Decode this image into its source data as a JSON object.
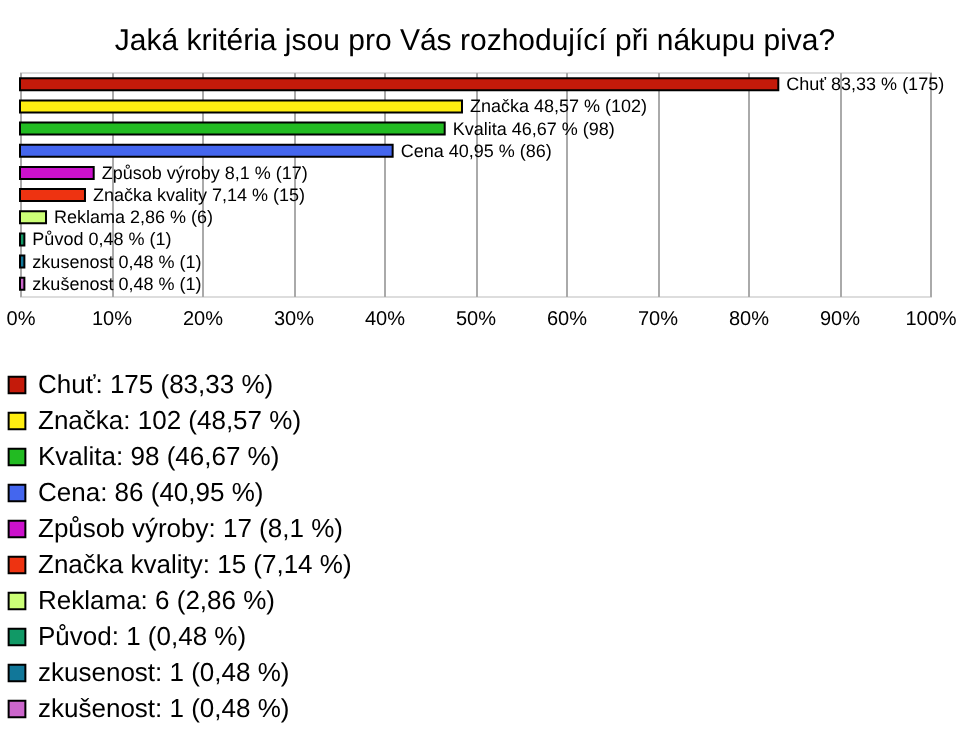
{
  "chart_data": {
    "type": "bar",
    "orientation": "horizontal",
    "title": "Jaká kritéria jsou pro Vás rozhodující při nákupu piva?",
    "categories": [
      null,
      null,
      null,
      null,
      null,
      null,
      null,
      null,
      null,
      null
    ],
    "series": [
      {
        "name": "Chuť: 175 (83,33 %)",
        "color": "#c41a0a",
        "values": [
          83.33,
          null,
          null,
          null,
          null,
          null,
          null,
          null,
          null,
          null
        ],
        "value_labels": [
          "Chuť 83,33 % (175)",
          null,
          null,
          null,
          null,
          null,
          null,
          null,
          null,
          null
        ]
      },
      {
        "name": "Značka: 102 (48,57 %)",
        "color": "#ffee11",
        "values": [
          null,
          48.57,
          null,
          null,
          null,
          null,
          null,
          null,
          null,
          null
        ],
        "value_labels": [
          null,
          "Značka 48,57 % (102)",
          null,
          null,
          null,
          null,
          null,
          null,
          null,
          null
        ]
      },
      {
        "name": "Kvalita: 98 (46,67 %)",
        "color": "#22bb22",
        "values": [
          null,
          null,
          46.67,
          null,
          null,
          null,
          null,
          null,
          null,
          null
        ],
        "value_labels": [
          null,
          null,
          "Kvalita 46,67 % (98)",
          null,
          null,
          null,
          null,
          null,
          null,
          null
        ]
      },
      {
        "name": "Cena: 86 (40,95 %)",
        "color": "#4466ee",
        "values": [
          null,
          null,
          null,
          40.95,
          null,
          null,
          null,
          null,
          null,
          null
        ],
        "value_labels": [
          null,
          null,
          null,
          "Cena 40,95 % (86)",
          null,
          null,
          null,
          null,
          null,
          null
        ]
      },
      {
        "name": "Způsob výroby: 17 (8,1 %)",
        "color": "#cc11cc",
        "values": [
          null,
          null,
          null,
          null,
          8.1,
          null,
          null,
          null,
          null,
          null
        ],
        "value_labels": [
          null,
          null,
          null,
          null,
          "Způsob výroby 8,1 % (17)",
          null,
          null,
          null,
          null,
          null
        ]
      },
      {
        "name": "Značka kvality: 15 (7,14 %)",
        "color": "#ee3311",
        "values": [
          null,
          null,
          null,
          null,
          null,
          7.14,
          null,
          null,
          null,
          null
        ],
        "value_labels": [
          null,
          null,
          null,
          null,
          null,
          "Značka kvality 7,14 % (15)",
          null,
          null,
          null,
          null
        ]
      },
      {
        "name": "Reklama: 6 (2,86 %)",
        "color": "#ccff77",
        "values": [
          null,
          null,
          null,
          null,
          null,
          null,
          2.86,
          null,
          null,
          null
        ],
        "value_labels": [
          null,
          null,
          null,
          null,
          null,
          null,
          "Reklama 2,86 % (6)",
          null,
          null,
          null
        ]
      },
      {
        "name": "Původ: 1 (0,48 %)",
        "color": "#119966",
        "values": [
          null,
          null,
          null,
          null,
          null,
          null,
          null,
          0.48,
          null,
          null
        ],
        "value_labels": [
          null,
          null,
          null,
          null,
          null,
          null,
          null,
          "Původ 0,48 % (1)",
          null,
          null
        ]
      },
      {
        "name": "zkusenost: 1 (0,48 %)",
        "color": "#117799",
        "values": [
          null,
          null,
          null,
          null,
          null,
          null,
          null,
          null,
          0.48,
          null
        ],
        "value_labels": [
          null,
          null,
          null,
          null,
          null,
          null,
          null,
          null,
          "zkusenost 0,48 % (1)",
          null
        ]
      },
      {
        "name": "zkušenost: 1 (0,48 %)",
        "color": "#cc66cc",
        "values": [
          null,
          null,
          null,
          null,
          null,
          null,
          null,
          null,
          null,
          0.48
        ],
        "value_labels": [
          null,
          null,
          null,
          null,
          null,
          null,
          null,
          null,
          null,
          "zkušenost 0,48 % (1)"
        ]
      }
    ],
    "xlim": [
      0,
      100
    ],
    "xticks": [
      {
        "value": 0,
        "label": "0%"
      },
      {
        "value": 10,
        "label": "10%"
      },
      {
        "value": 20,
        "label": "20%"
      },
      {
        "value": 30,
        "label": "30%"
      },
      {
        "value": 40,
        "label": "40%"
      },
      {
        "value": 50,
        "label": "50%"
      },
      {
        "value": 60,
        "label": "60%"
      },
      {
        "value": 70,
        "label": "70%"
      },
      {
        "value": 80,
        "label": "80%"
      },
      {
        "value": 90,
        "label": "90%"
      },
      {
        "value": 100,
        "label": "100%"
      }
    ],
    "grid": "x",
    "legend": "bottom",
    "tick_labels": "x"
  }
}
